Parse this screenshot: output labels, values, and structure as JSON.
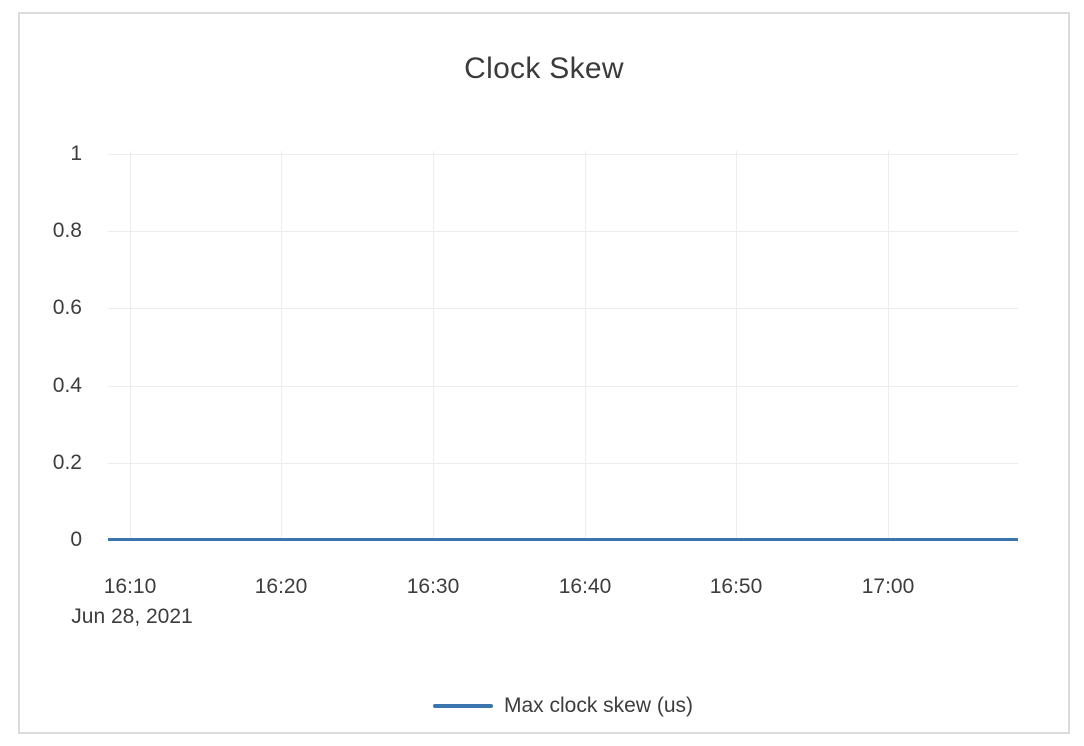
{
  "colors": {
    "series_blue": "#3a76ad",
    "gridline": "#ececec",
    "card_border": "#dcdcdc",
    "text": "#3d3d3d",
    "background": "#ffffff"
  },
  "chart_data": {
    "type": "line",
    "title": "Clock Skew",
    "x_date_label": "Jun 28, 2021",
    "x_ticks": [
      "16:10",
      "16:20",
      "16:30",
      "16:40",
      "16:50",
      "17:00"
    ],
    "y_ticks": [
      "1",
      "0.8",
      "0.6",
      "0.4",
      "0.2",
      "0"
    ],
    "xlabel": "",
    "ylabel": "",
    "ylim": [
      0,
      1
    ],
    "grid": true,
    "legend_position": "bottom",
    "series": [
      {
        "name": "Max clock skew (us)",
        "color": "#3a76ad",
        "x": [
          "16:10",
          "16:20",
          "16:30",
          "16:40",
          "16:50",
          "17:00"
        ],
        "values": [
          0,
          0,
          0,
          0,
          0,
          0
        ]
      }
    ]
  }
}
